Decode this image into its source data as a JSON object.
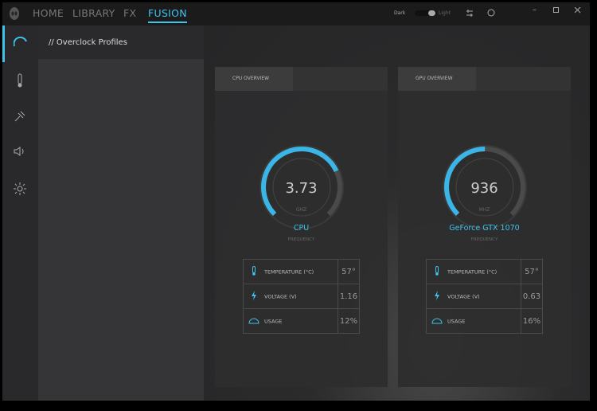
{
  "nav": {
    "tabs": [
      "HOME",
      "LIBRARY",
      "FX",
      "FUSION"
    ]
  },
  "theme": {
    "dark": "Dark",
    "light": "Light"
  },
  "sidebar": {
    "section": "// Overclock Profiles"
  },
  "cards": [
    {
      "tab": "CPU OVERVIEW",
      "value": "3.73",
      "unit": "GHZ",
      "name": "CPU",
      "label": "FREQUENCY",
      "rows": [
        {
          "label": "TEMPERATURE (°C)",
          "value": "57°"
        },
        {
          "label": "VOLTAGE (V)",
          "value": "1.16"
        },
        {
          "label": "USAGE",
          "value": "12%"
        }
      ]
    },
    {
      "tab": "GPU OVERVIEW",
      "value": "936",
      "unit": "MHZ",
      "name": "GeForce GTX 1070",
      "label": "FREQUENCY",
      "rows": [
        {
          "label": "TEMPERATURE (°C)",
          "value": "57°"
        },
        {
          "label": "VOLTAGE (V)",
          "value": "0.63"
        },
        {
          "label": "USAGE",
          "value": "16%"
        }
      ]
    }
  ]
}
